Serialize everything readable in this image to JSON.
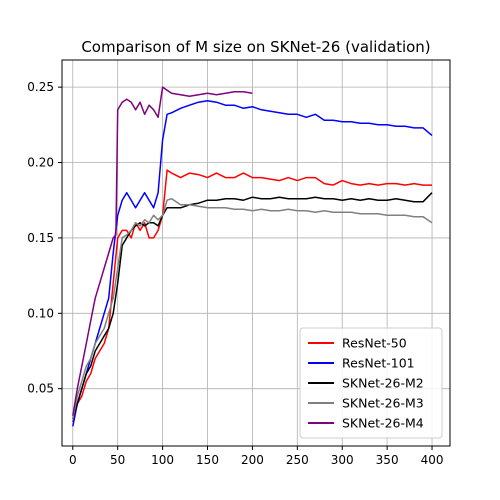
{
  "chart_data": {
    "type": "line",
    "title": "Comparison of M size on SKNet-26 (validation)",
    "xlabel": "",
    "ylabel": "",
    "xlim": [
      -12,
      420
    ],
    "ylim": [
      0.012,
      0.268
    ],
    "xticks": [
      0,
      50,
      100,
      150,
      200,
      250,
      300,
      350,
      400
    ],
    "yticks": [
      0.05,
      0.1,
      0.15,
      0.2,
      0.25
    ],
    "ytick_labels": [
      "0.05",
      "0.10",
      "0.15",
      "0.20",
      "0.25"
    ],
    "grid": true,
    "legend_position": "bottom-right",
    "series": [
      {
        "name": "ResNet-50",
        "color": "#ff0000",
        "x": [
          0,
          5,
          10,
          15,
          20,
          25,
          30,
          35,
          40,
          45,
          50,
          55,
          60,
          65,
          70,
          75,
          80,
          85,
          90,
          95,
          100,
          105,
          110,
          120,
          130,
          140,
          150,
          160,
          170,
          180,
          190,
          200,
          210,
          220,
          230,
          240,
          250,
          260,
          270,
          280,
          290,
          300,
          310,
          320,
          330,
          340,
          350,
          360,
          370,
          380,
          390,
          400
        ],
        "y": [
          0.028,
          0.04,
          0.045,
          0.055,
          0.06,
          0.07,
          0.075,
          0.08,
          0.09,
          0.12,
          0.15,
          0.155,
          0.155,
          0.15,
          0.16,
          0.155,
          0.16,
          0.15,
          0.15,
          0.155,
          0.165,
          0.195,
          0.193,
          0.19,
          0.193,
          0.192,
          0.19,
          0.193,
          0.19,
          0.19,
          0.193,
          0.19,
          0.19,
          0.189,
          0.188,
          0.19,
          0.188,
          0.19,
          0.19,
          0.186,
          0.185,
          0.188,
          0.186,
          0.185,
          0.186,
          0.185,
          0.186,
          0.186,
          0.185,
          0.186,
          0.185,
          0.185
        ]
      },
      {
        "name": "ResNet-101",
        "color": "#0000ff",
        "x": [
          0,
          5,
          10,
          15,
          20,
          25,
          30,
          35,
          40,
          45,
          50,
          55,
          60,
          65,
          70,
          75,
          80,
          85,
          90,
          95,
          100,
          105,
          110,
          120,
          130,
          140,
          150,
          160,
          170,
          180,
          190,
          200,
          210,
          220,
          230,
          240,
          250,
          260,
          270,
          280,
          290,
          300,
          310,
          320,
          330,
          340,
          350,
          360,
          370,
          380,
          390,
          400
        ],
        "y": [
          0.025,
          0.04,
          0.05,
          0.06,
          0.07,
          0.08,
          0.09,
          0.1,
          0.11,
          0.14,
          0.165,
          0.175,
          0.18,
          0.175,
          0.17,
          0.175,
          0.18,
          0.175,
          0.17,
          0.18,
          0.215,
          0.232,
          0.233,
          0.236,
          0.238,
          0.24,
          0.241,
          0.24,
          0.238,
          0.238,
          0.236,
          0.237,
          0.235,
          0.234,
          0.233,
          0.232,
          0.232,
          0.23,
          0.232,
          0.228,
          0.228,
          0.227,
          0.227,
          0.226,
          0.226,
          0.225,
          0.225,
          0.224,
          0.224,
          0.223,
          0.223,
          0.218
        ]
      },
      {
        "name": "SKNet-26-M2",
        "color": "#000000",
        "x": [
          0,
          5,
          10,
          15,
          20,
          25,
          30,
          35,
          40,
          45,
          50,
          55,
          60,
          65,
          70,
          75,
          80,
          85,
          90,
          95,
          100,
          105,
          110,
          120,
          130,
          140,
          150,
          160,
          170,
          180,
          190,
          200,
          210,
          220,
          230,
          240,
          250,
          260,
          270,
          280,
          290,
          300,
          310,
          320,
          330,
          340,
          350,
          360,
          370,
          380,
          390,
          400
        ],
        "y": [
          0.03,
          0.04,
          0.05,
          0.06,
          0.065,
          0.075,
          0.08,
          0.085,
          0.09,
          0.1,
          0.12,
          0.145,
          0.15,
          0.155,
          0.158,
          0.16,
          0.158,
          0.16,
          0.16,
          0.158,
          0.165,
          0.17,
          0.17,
          0.17,
          0.172,
          0.173,
          0.175,
          0.175,
          0.176,
          0.176,
          0.175,
          0.177,
          0.176,
          0.176,
          0.177,
          0.176,
          0.176,
          0.176,
          0.177,
          0.176,
          0.176,
          0.175,
          0.176,
          0.175,
          0.176,
          0.175,
          0.175,
          0.176,
          0.175,
          0.174,
          0.174,
          0.18
        ]
      },
      {
        "name": "SKNet-26-M3",
        "color": "#808080",
        "x": [
          0,
          5,
          10,
          15,
          20,
          25,
          30,
          35,
          40,
          45,
          50,
          55,
          60,
          65,
          70,
          75,
          80,
          85,
          90,
          95,
          100,
          105,
          110,
          120,
          130,
          140,
          150,
          160,
          170,
          180,
          190,
          200,
          210,
          220,
          230,
          240,
          250,
          260,
          270,
          280,
          290,
          300,
          310,
          320,
          330,
          340,
          350,
          360,
          370,
          380,
          390,
          400
        ],
        "y": [
          0.03,
          0.045,
          0.055,
          0.065,
          0.07,
          0.08,
          0.085,
          0.09,
          0.1,
          0.11,
          0.13,
          0.15,
          0.152,
          0.155,
          0.16,
          0.158,
          0.162,
          0.16,
          0.165,
          0.162,
          0.165,
          0.175,
          0.176,
          0.172,
          0.172,
          0.171,
          0.17,
          0.17,
          0.17,
          0.169,
          0.169,
          0.168,
          0.169,
          0.168,
          0.168,
          0.169,
          0.168,
          0.168,
          0.167,
          0.168,
          0.167,
          0.167,
          0.167,
          0.166,
          0.166,
          0.166,
          0.165,
          0.165,
          0.165,
          0.164,
          0.164,
          0.16
        ]
      },
      {
        "name": "SKNet-26-M4",
        "color": "#800080",
        "x": [
          0,
          5,
          10,
          15,
          20,
          25,
          30,
          35,
          40,
          45,
          48,
          50,
          55,
          60,
          65,
          70,
          75,
          80,
          85,
          90,
          95,
          100,
          105,
          110,
          120,
          130,
          140,
          150,
          160,
          170,
          180,
          190,
          200
        ],
        "y": [
          0.032,
          0.05,
          0.065,
          0.08,
          0.095,
          0.11,
          0.12,
          0.13,
          0.14,
          0.15,
          0.152,
          0.235,
          0.24,
          0.242,
          0.24,
          0.235,
          0.24,
          0.232,
          0.238,
          0.235,
          0.23,
          0.25,
          0.248,
          0.246,
          0.245,
          0.244,
          0.245,
          0.246,
          0.245,
          0.246,
          0.247,
          0.247,
          0.246
        ]
      }
    ]
  }
}
